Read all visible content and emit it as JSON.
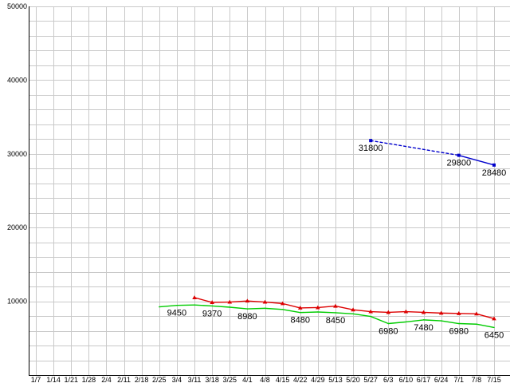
{
  "chart_data": {
    "type": "line",
    "title": "",
    "xlabel": "",
    "ylabel": "",
    "x_categories": [
      "1/7",
      "1/14",
      "1/21",
      "1/28",
      "2/4",
      "2/11",
      "2/18",
      "2/25",
      "3/4",
      "3/11",
      "3/18",
      "3/25",
      "4/1",
      "4/8",
      "4/15",
      "4/22",
      "4/29",
      "5/13",
      "5/20",
      "5/27",
      "6/3",
      "6/10",
      "6/17",
      "6/24",
      "7/1",
      "7/8",
      "7/15"
    ],
    "y_axis": {
      "min": 0,
      "max": 50000,
      "grid_step": 2000,
      "tick_step": 10000,
      "tick_labels": [
        "10000",
        "20000",
        "30000",
        "40000",
        "50000"
      ]
    },
    "grid": {
      "show": true,
      "color": "#c9c9c9"
    },
    "axis": {
      "color": "#000000",
      "text_color": "#000000"
    },
    "legend": "none",
    "background": "#ffffff",
    "point_label_color": "#000000",
    "series": [
      {
        "name": "red-price-series",
        "color": "#dd0000",
        "marker": "triangle",
        "line_style": "solid",
        "points": [
          {
            "x": "3/11",
            "y": 10500
          },
          {
            "x": "3/18",
            "y": 9850
          },
          {
            "x": "3/25",
            "y": 9900
          },
          {
            "x": "4/1",
            "y": 10050
          },
          {
            "x": "4/8",
            "y": 9900
          },
          {
            "x": "4/15",
            "y": 9700
          },
          {
            "x": "4/22",
            "y": 9100
          },
          {
            "x": "4/29",
            "y": 9150
          },
          {
            "x": "5/13",
            "y": 9350
          },
          {
            "x": "5/20",
            "y": 8850
          },
          {
            "x": "5/27",
            "y": 8600
          },
          {
            "x": "6/3",
            "y": 8500
          },
          {
            "x": "6/10",
            "y": 8600
          },
          {
            "x": "6/17",
            "y": 8500
          },
          {
            "x": "6/24",
            "y": 8400
          },
          {
            "x": "7/1",
            "y": 8350
          },
          {
            "x": "7/8",
            "y": 8300
          },
          {
            "x": "7/15",
            "y": 7650
          }
        ]
      },
      {
        "name": "green-price-series",
        "color": "#00cc00",
        "marker": "none",
        "line_style": "solid",
        "points": [
          {
            "x": "2/25",
            "y": 9250
          },
          {
            "x": "3/4",
            "y": 9450,
            "label": "9450"
          },
          {
            "x": "3/11",
            "y": 9500
          },
          {
            "x": "3/18",
            "y": 9370,
            "label": "9370"
          },
          {
            "x": "3/25",
            "y": 9200
          },
          {
            "x": "4/1",
            "y": 8980,
            "label": "8980"
          },
          {
            "x": "4/8",
            "y": 9050
          },
          {
            "x": "4/15",
            "y": 8900
          },
          {
            "x": "4/22",
            "y": 8480,
            "label": "8480"
          },
          {
            "x": "4/29",
            "y": 8550
          },
          {
            "x": "5/13",
            "y": 8450,
            "label": "8450"
          },
          {
            "x": "5/20",
            "y": 8300
          },
          {
            "x": "5/27",
            "y": 7950
          },
          {
            "x": "6/3",
            "y": 6980,
            "label": "6980"
          },
          {
            "x": "6/10",
            "y": 7200
          },
          {
            "x": "6/17",
            "y": 7480,
            "label": "7480"
          },
          {
            "x": "6/24",
            "y": 7350
          },
          {
            "x": "7/1",
            "y": 6980,
            "label": "6980"
          },
          {
            "x": "7/8",
            "y": 6900
          },
          {
            "x": "7/15",
            "y": 6450,
            "label": "6450"
          }
        ]
      },
      {
        "name": "blue-dotted-series",
        "color": "#0000cc",
        "marker": "square",
        "line_style": "mixed",
        "segment_styles": [
          "dashed",
          "solid"
        ],
        "points": [
          {
            "x": "5/27",
            "y": 31800,
            "label": "31800"
          },
          {
            "x": "7/1",
            "y": 29800,
            "label": "29800"
          },
          {
            "x": "7/15",
            "y": 28480,
            "label": "28480"
          }
        ]
      }
    ]
  }
}
